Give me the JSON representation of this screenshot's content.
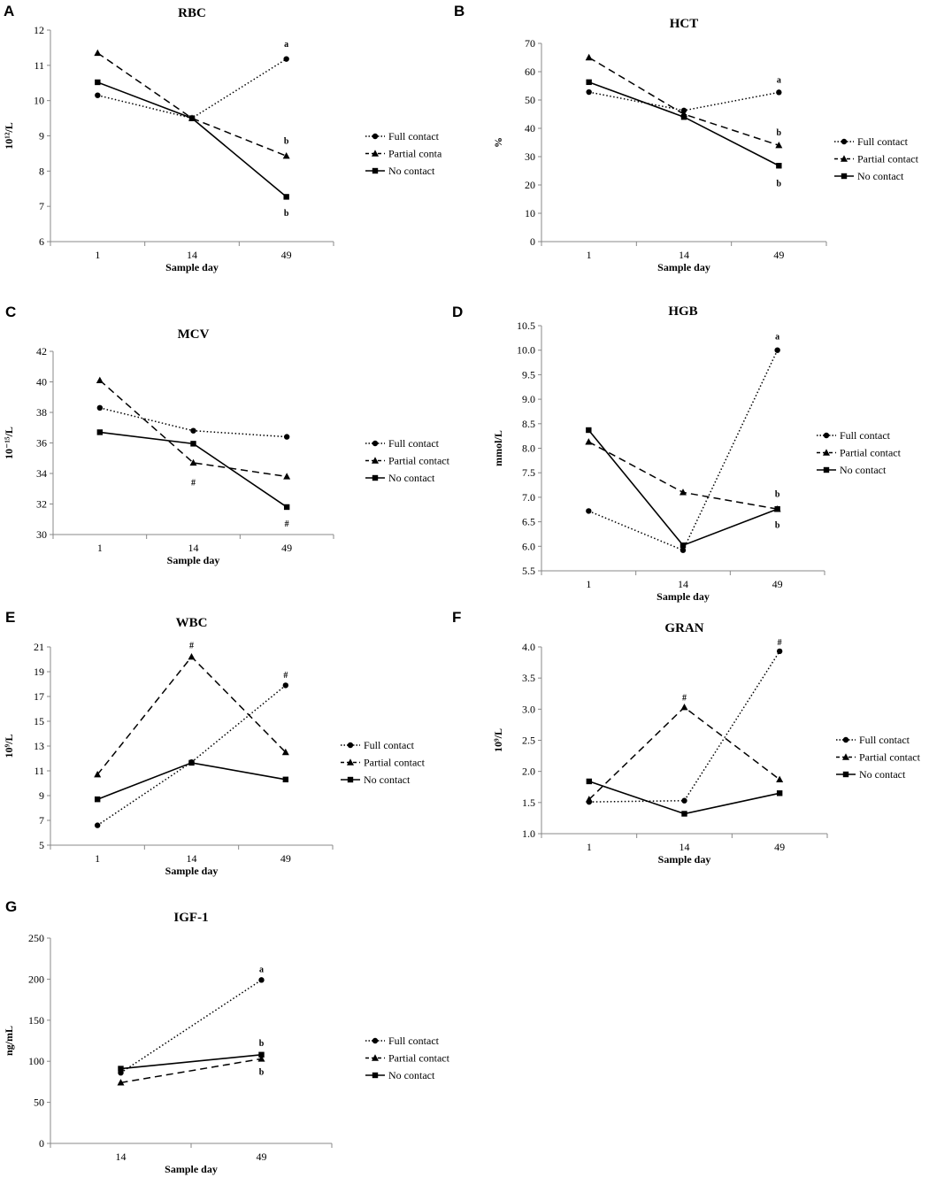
{
  "figure": {
    "xlabel": "Sample day"
  },
  "chart_data": [
    {
      "panel": "A",
      "type": "line",
      "title": "RBC",
      "ylabel": "10¹²/L",
      "xlabel": "Sample day",
      "categories": [
        "1",
        "14",
        "49"
      ],
      "ylim": [
        6,
        12
      ],
      "yticks": [
        "6",
        "7",
        "8",
        "9",
        "10",
        "11",
        "12"
      ],
      "series": [
        {
          "name": "Full contact",
          "style": "dotted",
          "marker": "circle",
          "values": [
            10.15,
            9.5,
            11.18
          ]
        },
        {
          "name": "Partial conta",
          "style": "dashed",
          "marker": "triangle",
          "values": [
            11.35,
            9.5,
            8.43
          ]
        },
        {
          "name": "No contact",
          "style": "solid",
          "marker": "square",
          "values": [
            10.52,
            9.5,
            7.27
          ]
        }
      ],
      "annotations": [
        {
          "text": "a",
          "x": "49",
          "y": 11.6
        },
        {
          "text": "b",
          "x": "49",
          "y": 8.85
        },
        {
          "text": "b",
          "x": "49",
          "y": 6.8
        }
      ]
    },
    {
      "panel": "B",
      "type": "line",
      "title": "HCT",
      "ylabel": "%",
      "xlabel": "Sample day",
      "categories": [
        "1",
        "14",
        "49"
      ],
      "ylim": [
        0,
        70
      ],
      "yticks": [
        "0",
        "10",
        "20",
        "30",
        "40",
        "50",
        "60",
        "70"
      ],
      "series": [
        {
          "name": "Full contact",
          "style": "dotted",
          "marker": "circle",
          "values": [
            52.8,
            46.3,
            52.7
          ]
        },
        {
          "name": "Partial contact",
          "style": "dashed",
          "marker": "triangle",
          "values": [
            65.0,
            45.0,
            34.0
          ]
        },
        {
          "name": "No contact",
          "style": "solid",
          "marker": "square",
          "values": [
            56.3,
            44.0,
            26.8
          ]
        }
      ],
      "annotations": [
        {
          "text": "a",
          "x": "49",
          "y": 57
        },
        {
          "text": "b",
          "x": "49",
          "y": 38.5
        },
        {
          "text": "b",
          "x": "49",
          "y": 20.5
        }
      ]
    },
    {
      "panel": "C",
      "type": "line",
      "title": "MCV",
      "ylabel": "10⁻¹⁵/L",
      "xlabel": "Sample day",
      "categories": [
        "1",
        "14",
        "49"
      ],
      "ylim": [
        30,
        42
      ],
      "yticks": [
        "30",
        "32",
        "34",
        "36",
        "38",
        "40",
        "42"
      ],
      "series": [
        {
          "name": "Full contact",
          "style": "dotted",
          "marker": "circle",
          "values": [
            38.3,
            36.8,
            36.4
          ]
        },
        {
          "name": "Partial contact",
          "style": "dashed",
          "marker": "triangle",
          "values": [
            40.1,
            34.7,
            33.8
          ]
        },
        {
          "name": "No contact",
          "style": "solid",
          "marker": "square",
          "values": [
            36.7,
            35.95,
            31.8
          ]
        }
      ],
      "annotations": [
        {
          "text": "#",
          "x": "14",
          "y": 33.4
        },
        {
          "text": "#",
          "x": "49",
          "y": 30.7
        }
      ]
    },
    {
      "panel": "D",
      "type": "line",
      "title": "HGB",
      "ylabel": "mmol/L",
      "xlabel": "Sample day",
      "categories": [
        "1",
        "14",
        "49"
      ],
      "ylim": [
        5.5,
        10.5
      ],
      "yticks": [
        "5.5",
        "6.0",
        "6.5",
        "7.0",
        "7.5",
        "8.0",
        "8.5",
        "9.0",
        "9.5",
        "10.0",
        "10.5"
      ],
      "series": [
        {
          "name": "Full contact",
          "style": "dotted",
          "marker": "circle",
          "values": [
            6.72,
            5.92,
            10.0
          ]
        },
        {
          "name": "Partial contact",
          "style": "dashed",
          "marker": "triangle",
          "values": [
            8.13,
            7.1,
            6.76
          ]
        },
        {
          "name": "No contact",
          "style": "solid",
          "marker": "square",
          "values": [
            8.37,
            6.02,
            6.76
          ]
        }
      ],
      "annotations": [
        {
          "text": "a",
          "x": "49",
          "y": 10.27
        },
        {
          "text": "b",
          "x": "49",
          "y": 7.06
        },
        {
          "text": "b",
          "x": "49",
          "y": 6.43
        }
      ]
    },
    {
      "panel": "E",
      "type": "line",
      "title": "WBC",
      "ylabel": "10⁹/L",
      "xlabel": "Sample day",
      "categories": [
        "1",
        "14",
        "49"
      ],
      "ylim": [
        5,
        21
      ],
      "yticks": [
        "5",
        "7",
        "9",
        "11",
        "13",
        "15",
        "17",
        "19",
        "21"
      ],
      "series": [
        {
          "name": "Full contact",
          "style": "dotted",
          "marker": "circle",
          "values": [
            6.6,
            11.7,
            17.9
          ]
        },
        {
          "name": "Partial contact",
          "style": "dashed",
          "marker": "triangle",
          "values": [
            10.7,
            20.2,
            12.5
          ]
        },
        {
          "name": "No contact",
          "style": "solid",
          "marker": "square",
          "values": [
            8.7,
            11.65,
            10.3
          ]
        }
      ],
      "annotations": [
        {
          "text": "#",
          "x": "14",
          "y": 21.1
        },
        {
          "text": "#",
          "x": "49",
          "y": 18.7
        }
      ]
    },
    {
      "panel": "F",
      "type": "line",
      "title": "GRAN",
      "ylabel": "10⁹/L",
      "xlabel": "Sample day",
      "categories": [
        "1",
        "14",
        "49"
      ],
      "ylim": [
        1.0,
        4.0
      ],
      "yticks": [
        "1.0",
        "1.5",
        "2.0",
        "2.5",
        "3.0",
        "3.5",
        "4.0"
      ],
      "series": [
        {
          "name": "Full contact",
          "style": "dotted",
          "marker": "circle",
          "values": [
            1.51,
            1.53,
            3.93
          ]
        },
        {
          "name": "Partial contact",
          "style": "dashed",
          "marker": "triangle",
          "values": [
            1.55,
            3.03,
            1.87
          ]
        },
        {
          "name": "No contact",
          "style": "solid",
          "marker": "square",
          "values": [
            1.84,
            1.32,
            1.65
          ]
        }
      ],
      "annotations": [
        {
          "text": "#",
          "x": "14",
          "y": 3.18
        },
        {
          "text": "#",
          "x": "49",
          "y": 4.07
        }
      ]
    },
    {
      "panel": "G",
      "type": "line",
      "title": "IGF-1",
      "ylabel": "ng/mL",
      "xlabel": "Sample day",
      "categories": [
        "14",
        "49"
      ],
      "ylim": [
        0,
        250
      ],
      "yticks": [
        "0",
        "50",
        "100",
        "150",
        "200",
        "250"
      ],
      "series": [
        {
          "name": "Full contact",
          "style": "dotted",
          "marker": "circle",
          "values": [
            86,
            199
          ]
        },
        {
          "name": "Partial contact",
          "style": "dashed",
          "marker": "triangle",
          "values": [
            74,
            103
          ]
        },
        {
          "name": "No contact",
          "style": "solid",
          "marker": "square",
          "values": [
            91,
            108
          ]
        }
      ],
      "annotations": [
        {
          "text": "a",
          "x": "49",
          "y": 212
        },
        {
          "text": "b",
          "x": "49",
          "y": 122
        },
        {
          "text": "b",
          "x": "49",
          "y": 87
        }
      ]
    }
  ]
}
